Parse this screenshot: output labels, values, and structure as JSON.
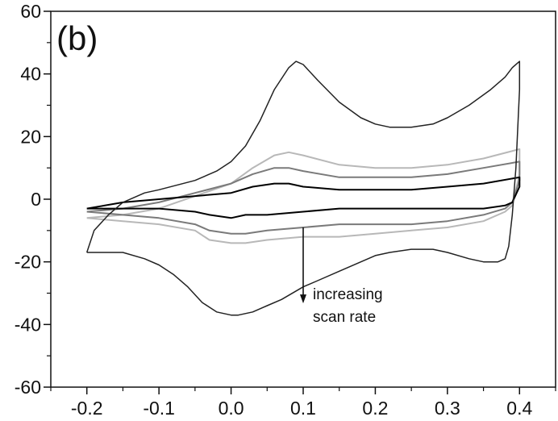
{
  "chart_data": {
    "type": "line",
    "panel_label": "(b)",
    "xlabel": "",
    "ylabel": "",
    "xlim": [
      -0.25,
      0.45
    ],
    "ylim": [
      -60,
      60
    ],
    "x_ticks": [
      "-0.2",
      "-0.1",
      "0.0",
      "0.1",
      "0.2",
      "0.3",
      "0.4"
    ],
    "x_tick_values": [
      -0.2,
      -0.1,
      0.0,
      0.1,
      0.2,
      0.3,
      0.4
    ],
    "y_ticks": [
      "60",
      "40",
      "20",
      "0",
      "-20",
      "-40",
      "-60"
    ],
    "y_tick_values": [
      60,
      40,
      20,
      0,
      -20,
      -40,
      -60
    ],
    "grid": false,
    "legend": "none",
    "annotation": {
      "lines": [
        "increasing",
        "scan rate"
      ],
      "arrow_from": [
        0.1,
        -9
      ],
      "arrow_to": [
        0.1,
        -33
      ]
    },
    "series": [
      {
        "color": "#b8b8b8",
        "points": [
          [
            -0.2,
            -6
          ],
          [
            -0.15,
            -5
          ],
          [
            -0.1,
            -3
          ],
          [
            -0.05,
            1
          ],
          [
            0.0,
            5
          ],
          [
            0.03,
            10
          ],
          [
            0.06,
            14
          ],
          [
            0.08,
            15
          ],
          [
            0.1,
            14
          ],
          [
            0.15,
            11
          ],
          [
            0.2,
            10
          ],
          [
            0.25,
            10
          ],
          [
            0.3,
            11
          ],
          [
            0.35,
            13
          ],
          [
            0.4,
            16
          ],
          [
            0.4,
            8
          ],
          [
            0.39,
            -2
          ],
          [
            0.38,
            -4
          ],
          [
            0.35,
            -7
          ],
          [
            0.3,
            -9
          ],
          [
            0.25,
            -10
          ],
          [
            0.2,
            -11
          ],
          [
            0.15,
            -12
          ],
          [
            0.1,
            -12
          ],
          [
            0.05,
            -13
          ],
          [
            0.02,
            -14
          ],
          [
            0.0,
            -14
          ],
          [
            -0.03,
            -13
          ],
          [
            -0.05,
            -10
          ],
          [
            -0.1,
            -8
          ],
          [
            -0.15,
            -7
          ],
          [
            -0.2,
            -6
          ]
        ]
      },
      {
        "color": "#7a7a7a",
        "points": [
          [
            -0.2,
            -4
          ],
          [
            -0.15,
            -3
          ],
          [
            -0.1,
            -1
          ],
          [
            -0.05,
            2
          ],
          [
            0.0,
            5
          ],
          [
            0.03,
            8
          ],
          [
            0.06,
            10
          ],
          [
            0.08,
            10
          ],
          [
            0.1,
            9
          ],
          [
            0.15,
            7
          ],
          [
            0.2,
            7
          ],
          [
            0.25,
            7
          ],
          [
            0.3,
            8
          ],
          [
            0.35,
            10
          ],
          [
            0.4,
            12
          ],
          [
            0.4,
            6
          ],
          [
            0.39,
            -1
          ],
          [
            0.38,
            -3
          ],
          [
            0.35,
            -5
          ],
          [
            0.3,
            -7
          ],
          [
            0.25,
            -8
          ],
          [
            0.2,
            -8
          ],
          [
            0.15,
            -8
          ],
          [
            0.1,
            -9
          ],
          [
            0.05,
            -10
          ],
          [
            0.02,
            -11
          ],
          [
            0.0,
            -11
          ],
          [
            -0.03,
            -10
          ],
          [
            -0.05,
            -8
          ],
          [
            -0.1,
            -6
          ],
          [
            -0.15,
            -5
          ],
          [
            -0.2,
            -4
          ]
        ]
      },
      {
        "color": "#000000",
        "points": [
          [
            -0.2,
            -3
          ],
          [
            -0.15,
            -1
          ],
          [
            -0.1,
            0
          ],
          [
            -0.05,
            1
          ],
          [
            0.0,
            2
          ],
          [
            0.03,
            4
          ],
          [
            0.06,
            5
          ],
          [
            0.08,
            5
          ],
          [
            0.1,
            4
          ],
          [
            0.15,
            3
          ],
          [
            0.2,
            3
          ],
          [
            0.25,
            3
          ],
          [
            0.3,
            4
          ],
          [
            0.35,
            5
          ],
          [
            0.4,
            7
          ],
          [
            0.4,
            4
          ],
          [
            0.39,
            -1
          ],
          [
            0.38,
            -2
          ],
          [
            0.35,
            -3
          ],
          [
            0.3,
            -3
          ],
          [
            0.25,
            -3
          ],
          [
            0.2,
            -3
          ],
          [
            0.15,
            -3
          ],
          [
            0.1,
            -4
          ],
          [
            0.05,
            -5
          ],
          [
            0.02,
            -5
          ],
          [
            0.0,
            -6
          ],
          [
            -0.03,
            -5
          ],
          [
            -0.05,
            -4
          ],
          [
            -0.1,
            -3
          ],
          [
            -0.15,
            -3
          ],
          [
            -0.2,
            -3
          ]
        ]
      },
      {
        "color": "#222222",
        "points": [
          [
            -0.2,
            -17
          ],
          [
            -0.19,
            -10
          ],
          [
            -0.17,
            -5
          ],
          [
            -0.15,
            -1
          ],
          [
            -0.12,
            2
          ],
          [
            -0.1,
            3
          ],
          [
            -0.05,
            6
          ],
          [
            -0.02,
            9
          ],
          [
            0.0,
            12
          ],
          [
            0.02,
            17
          ],
          [
            0.04,
            25
          ],
          [
            0.06,
            35
          ],
          [
            0.08,
            42
          ],
          [
            0.09,
            44
          ],
          [
            0.1,
            43
          ],
          [
            0.12,
            38
          ],
          [
            0.15,
            31
          ],
          [
            0.18,
            26
          ],
          [
            0.2,
            24
          ],
          [
            0.22,
            23
          ],
          [
            0.25,
            23
          ],
          [
            0.28,
            24
          ],
          [
            0.3,
            26
          ],
          [
            0.33,
            30
          ],
          [
            0.36,
            35
          ],
          [
            0.38,
            39
          ],
          [
            0.39,
            42
          ],
          [
            0.4,
            44
          ],
          [
            0.4,
            35
          ],
          [
            0.395,
            10
          ],
          [
            0.39,
            -5
          ],
          [
            0.385,
            -15
          ],
          [
            0.38,
            -19
          ],
          [
            0.37,
            -20
          ],
          [
            0.35,
            -20
          ],
          [
            0.33,
            -19
          ],
          [
            0.3,
            -17
          ],
          [
            0.28,
            -16
          ],
          [
            0.25,
            -16
          ],
          [
            0.22,
            -17
          ],
          [
            0.2,
            -18
          ],
          [
            0.18,
            -20
          ],
          [
            0.15,
            -23
          ],
          [
            0.12,
            -26
          ],
          [
            0.1,
            -28
          ],
          [
            0.07,
            -32
          ],
          [
            0.05,
            -34
          ],
          [
            0.03,
            -36
          ],
          [
            0.01,
            -37
          ],
          [
            0.0,
            -37
          ],
          [
            -0.02,
            -36
          ],
          [
            -0.04,
            -33
          ],
          [
            -0.06,
            -28
          ],
          [
            -0.08,
            -24
          ],
          [
            -0.1,
            -21
          ],
          [
            -0.12,
            -19
          ],
          [
            -0.15,
            -17
          ],
          [
            -0.18,
            -17
          ],
          [
            -0.2,
            -17
          ]
        ]
      }
    ]
  }
}
